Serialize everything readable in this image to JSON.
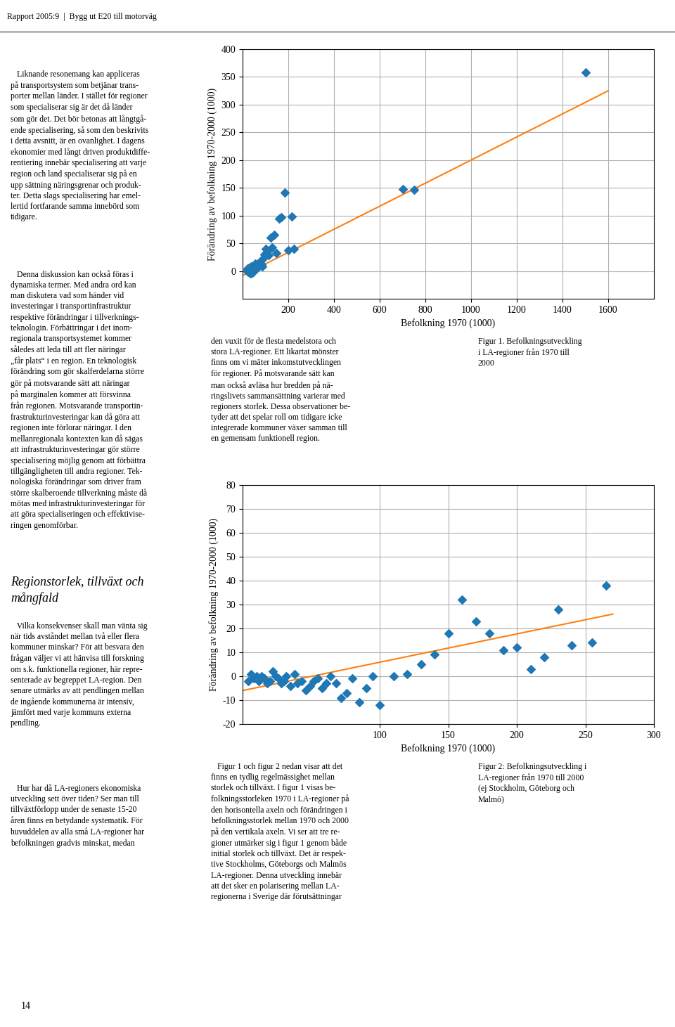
{
  "chart_data": [
    {
      "type": "scatter",
      "xlabel": "Befolkning 1970 (1000)",
      "ylabel": "Förändring av befolkning 1970-2000 (1000)",
      "xlim": [
        0,
        1800
      ],
      "ylim": [
        -50,
        400
      ],
      "xticks": [
        200,
        400,
        600,
        800,
        1000,
        1200,
        1400,
        1600
      ],
      "yticks": [
        0,
        50,
        100,
        150,
        200,
        250,
        300,
        350,
        400
      ],
      "grid": true,
      "series": [
        {
          "type": "scatter",
          "marker": "diamond",
          "x": [
            18,
            22,
            26,
            28,
            30,
            33,
            36,
            38,
            40,
            43,
            46,
            50,
            54,
            58,
            62,
            66,
            70,
            74,
            78,
            82,
            86,
            90,
            95,
            100,
            108,
            115,
            122,
            130,
            138,
            148,
            160,
            170,
            185,
            200,
            215,
            225,
            700,
            750,
            1500
          ],
          "values": [
            1,
            4,
            -2,
            6,
            2,
            -4,
            8,
            -1,
            4,
            -3,
            6,
            10,
            13,
            6,
            4,
            8,
            15,
            10,
            17,
            12,
            8,
            22,
            30,
            40,
            35,
            28,
            60,
            42,
            65,
            32,
            95,
            97,
            142,
            38,
            98,
            40,
            148,
            147,
            358
          ]
        },
        {
          "type": "line",
          "x": [
            0,
            1600
          ],
          "values": [
            -8,
            325
          ]
        }
      ]
    },
    {
      "type": "scatter",
      "xlabel": "Befolkning 1970 (1000)",
      "ylabel": "Förändring av befolkning 1970-2000 (1000)",
      "xlim": [
        0,
        300
      ],
      "ylim": [
        -20,
        80
      ],
      "xticks": [
        100,
        150,
        200,
        250,
        300
      ],
      "yticks": [
        -20,
        -10,
        0,
        10,
        20,
        30,
        40,
        50,
        60,
        70,
        80
      ],
      "grid": true,
      "series": [
        {
          "type": "scatter",
          "marker": "diamond",
          "x": [
            4,
            6,
            8,
            10,
            12,
            14,
            16,
            18,
            20,
            22,
            24,
            26,
            28,
            30,
            32,
            35,
            38,
            40,
            43,
            46,
            49,
            52,
            55,
            58,
            61,
            64,
            68,
            72,
            76,
            80,
            85,
            90,
            95,
            100,
            110,
            120,
            130,
            140,
            150,
            160,
            170,
            180,
            190,
            200,
            210,
            220,
            230,
            240,
            255,
            265
          ],
          "values": [
            -2,
            1,
            -1,
            0,
            -2,
            0,
            -1,
            -3,
            -2,
            2,
            0,
            -1,
            -3,
            -2,
            0,
            -4,
            1,
            -3,
            -2,
            -6,
            -4,
            -2,
            -1,
            -5,
            -3,
            0,
            -3,
            -9,
            -7,
            -1,
            -11,
            -5,
            0,
            -12,
            0,
            1,
            5,
            9,
            18,
            32,
            23,
            18,
            11,
            12,
            3,
            8,
            28,
            13,
            14,
            38
          ]
        },
        {
          "type": "line",
          "x": [
            0,
            270
          ],
          "values": [
            -6,
            26
          ]
        }
      ]
    }
  ],
  "annotations": [
    "Rapport 2005:9  |  Bygg ut E20 till motorväg",
    "14",
    "   Liknande resonemang kan appliceras\npå transportsystem som betjänar trans-\nporter mellan länder. I stället för regioner\nsom specialiserar sig är det då länder\nsom gör det. Det bör betonas att långtgå-\nende specialisering, så som den beskrivits\ni detta avsnitt, är en ovanlighet. I dagens\nekonomier med långt driven produktdiffe-\nrentiering innebär specialisering att varje\nregion och land specialiserar sig på en\nupp sättning näringsgrenar och produk-\nter. Detta slags specialisering har emel-\nlertid fortfarande samma innebörd som\ntidigare.",
    "   Denna diskussion kan också föras i\ndynamiska termer. Med andra ord kan\nman diskutera vad som händer vid\ninvesteringar i transportinfrastruktur\nrespektive förändringar i tillverknings-\nteknologin. Förbättringar i det inom-\nregionala transportsystemet kommer\nsåledes att leda till att fler näringar\n„får plats“ i en region. En teknologisk\nförändring som gör skalferdelarna större\ngör på motsvarande sätt att näringar\npå marginalen kommer att försvinna\nfrån regionen. Motsvarande transportin-\nfrastrukturinvesteringar kan då göra att\nregionen inte förlorar näringar. I den\nmellanregionala kontexten kan då sägas\natt infrastrukturinvesteringar gör större\nspecialisering möjlig genom att förbättra\ntillgängligheten till andra regioner. Tek-\nnologiska förändringar som driver fram\nstörre skalberoende tillverkning måste då\nmötas med infrastrukturinvesteringar för\natt göra specialiseringen och effektivise-\nringen genomförbar.",
    "Regionstorlek, tillväxt och\nmångfald",
    "   Vilka konsekvenser skall man vänta sig\nnär tids avståndet mellan två eller flera\nkommuner minskar? För att besvara den\nfrågan väljer vi att hänvisa till forskning\nom s.k. funktionella regioner, här repre-\nsenterade av begreppet LA-region. Den\nsenare utmärks av att pendlingen mellan\nde ingående kommunerna är intensiv,\njämfört med varje kommuns externa\npendling.",
    "   Hur har då LA-regioners ekonomiska\nutveckling sett över tiden? Ser man till\ntillväxtförlopp under de senaste 15-20\nåren finns en betydande systematik. För\nhuvuddelen av alla små LA-regioner har\nbefolkningen gradvis minskat, medan",
    "den vuxit för de flesta medelstora och\nstora LA-regioner. Ett likartat mönster\nfinns om vi mäter inkomstutvecklingen\nför regioner. På motsvarande sätt kan\nman också avläsa hur bredden på nä-\nringslivets sammansättning varierar med\nregioners storlek. Dessa observationer be-\ntyder att det spelar roll om tidigare icke\nintegrerade kommuner växer samman till\nen gemensam funktionell region.",
    "Figur 1. Befolkningsutveckling\ni LA-regioner från 1970 till\n2000",
    "   Figur 1 och figur 2 nedan visar att det\nfinns en tydlig regelmässighet mellan\nstorlek och tillväxt. I figur 1 visas be-\nfolkningsstorleken 1970 i LA-regioner på\nden horisontella axeln och förändringen i\nbefolkningsstorlek mellan 1970 och 2000\npå den vertikala axeln. Vi ser att tre re-\ngioner utmärker sig i figur 1 genom både\ninitial storlek och tillväxt. Det är respek-\ntive Stockholms, Göteborgs och Malmös\nLA-regioner. Denna utveckling innebär\natt det sker en polarisering mellan LA-\nregionerna i Sverige där förutsättningar",
    "Figur 2: Befolkningsutveckling i\nLA-regioner från 1970 till 2000\n(ej Stockholm, Göteborg och\nMalmö)"
  ]
}
